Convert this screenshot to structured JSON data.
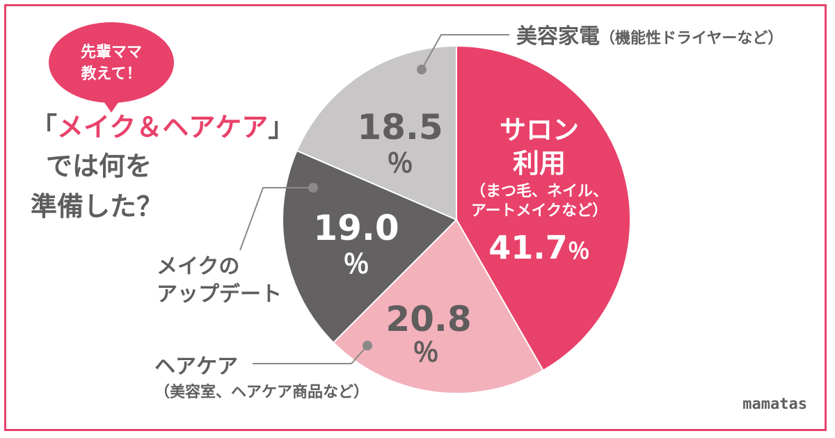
{
  "bubble": {
    "line1": "先輩ママ",
    "line2": "教えて！"
  },
  "heading": {
    "line1_open": "「",
    "line1_accent": "メイク＆ヘアケア",
    "line1_close": "」",
    "line2": "では何を",
    "line3": "準備した？"
  },
  "brand": "mamatas",
  "colors": {
    "accent": "#e8416a",
    "text": "#5f5d5d",
    "salon": "#e8416a",
    "haircare": "#f3b1bb",
    "makeup": "#646162",
    "appliance": "#c8c6c7"
  },
  "chart_data": {
    "type": "pie",
    "start": "12 o'clock, clockwise",
    "slices": [
      {
        "key": "salon",
        "label": "サロン利用",
        "label_lines": [
          "サロン",
          "利用"
        ],
        "sub_lines": [
          "（まつ毛、ネイル、",
          "アートメイクなど）"
        ],
        "value": 41.7,
        "value_text": "41.7",
        "unit": "％"
      },
      {
        "key": "haircare",
        "label": "ヘアケア",
        "sub": "（美容室、ヘアケア商品など）",
        "value": 20.8,
        "value_text": "20.8",
        "unit": "％"
      },
      {
        "key": "makeup",
        "label_lines": [
          "メイクの",
          "アップデート"
        ],
        "value": 19.0,
        "value_text": "19.0",
        "unit": "％"
      },
      {
        "key": "appliance",
        "label": "美容家電",
        "sub": "（機能性ドライヤーなど）",
        "value": 18.5,
        "value_text": "18.5",
        "unit": "％"
      }
    ]
  }
}
